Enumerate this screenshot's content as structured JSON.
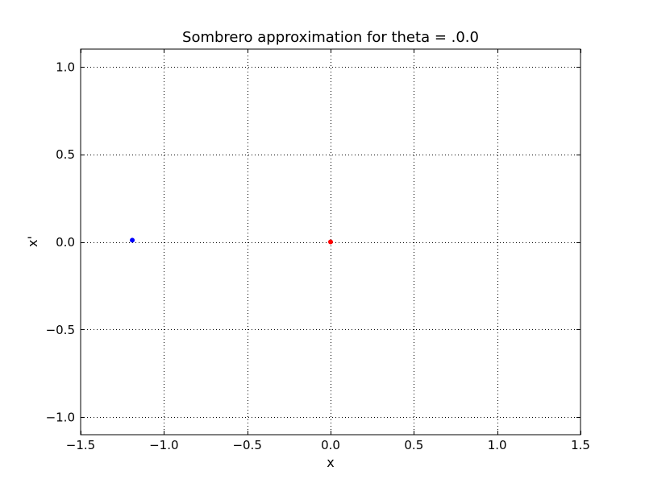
{
  "chart_data": {
    "type": "scatter",
    "title": "Sombrero approximation for theta = .0.0",
    "xlabel": "x",
    "ylabel": "x'",
    "xlim": [
      -1.5,
      1.5
    ],
    "ylim": [
      -1.1,
      1.1
    ],
    "xticks": [
      -1.5,
      -1.0,
      -0.5,
      0.0,
      0.5,
      1.0,
      1.5
    ],
    "yticks": [
      -1.0,
      -0.5,
      0.0,
      0.5,
      1.0
    ],
    "xtick_labels": [
      "−1.5",
      "−1.0",
      "−0.5",
      "0.0",
      "0.5",
      "1.0",
      "1.5"
    ],
    "ytick_labels": [
      "−1.0",
      "−0.5",
      "0.0",
      "0.5",
      "1.0"
    ],
    "grid": true,
    "series": [
      {
        "color": "#0000ff",
        "points": [
          {
            "x": -1.19,
            "y": 0.01
          }
        ]
      },
      {
        "color": "#ff0000",
        "points": [
          {
            "x": 0.0,
            "y": 0.0
          }
        ]
      }
    ]
  }
}
